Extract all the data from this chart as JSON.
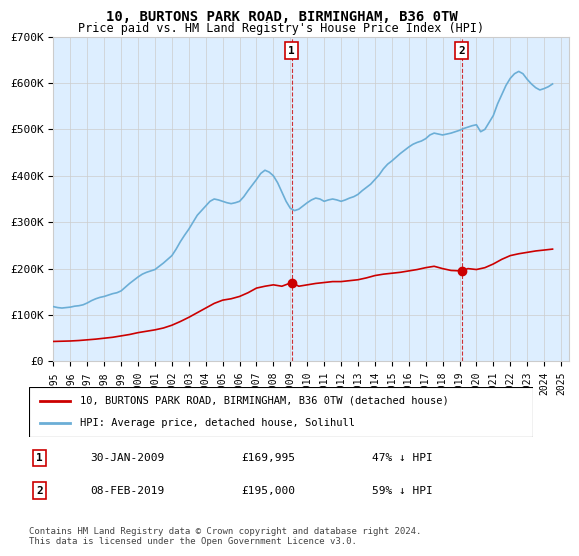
{
  "title": "10, BURTONS PARK ROAD, BIRMINGHAM, B36 0TW",
  "subtitle": "Price paid vs. HM Land Registry's House Price Index (HPI)",
  "ylabel_ticks": [
    "£0",
    "£100K",
    "£200K",
    "£300K",
    "£400K",
    "£500K",
    "£600K",
    "£700K"
  ],
  "ylim": [
    0,
    700000
  ],
  "xlim_start": 1995.0,
  "xlim_end": 2025.5,
  "hpi_color": "#6baed6",
  "price_color": "#cc0000",
  "grid_color": "#cccccc",
  "bg_color": "#ddeeff",
  "plot_bg": "#ddeeff",
  "transactions": [
    {
      "date": "30-JAN-2009",
      "price": 169995,
      "label": "1",
      "year": 2009.08,
      "hpi_pct": "47% ↓ HPI"
    },
    {
      "date": "08-FEB-2019",
      "price": 195000,
      "label": "2",
      "year": 2019.12,
      "hpi_pct": "59% ↓ HPI"
    }
  ],
  "legend_line1": "10, BURTONS PARK ROAD, BIRMINGHAM, B36 0TW (detached house)",
  "legend_line2": "HPI: Average price, detached house, Solihull",
  "footnote": "Contains HM Land Registry data © Crown copyright and database right 2024.\nThis data is licensed under the Open Government Licence v3.0.",
  "hpi_data": {
    "years": [
      1995.0,
      1995.25,
      1995.5,
      1995.75,
      1996.0,
      1996.25,
      1996.5,
      1996.75,
      1997.0,
      1997.25,
      1997.5,
      1997.75,
      1998.0,
      1998.25,
      1998.5,
      1998.75,
      1999.0,
      1999.25,
      1999.5,
      1999.75,
      2000.0,
      2000.25,
      2000.5,
      2000.75,
      2001.0,
      2001.25,
      2001.5,
      2001.75,
      2002.0,
      2002.25,
      2002.5,
      2002.75,
      2003.0,
      2003.25,
      2003.5,
      2003.75,
      2004.0,
      2004.25,
      2004.5,
      2004.75,
      2005.0,
      2005.25,
      2005.5,
      2005.75,
      2006.0,
      2006.25,
      2006.5,
      2006.75,
      2007.0,
      2007.25,
      2007.5,
      2007.75,
      2008.0,
      2008.25,
      2008.5,
      2008.75,
      2009.0,
      2009.25,
      2009.5,
      2009.75,
      2010.0,
      2010.25,
      2010.5,
      2010.75,
      2011.0,
      2011.25,
      2011.5,
      2011.75,
      2012.0,
      2012.25,
      2012.5,
      2012.75,
      2013.0,
      2013.25,
      2013.5,
      2013.75,
      2014.0,
      2014.25,
      2014.5,
      2014.75,
      2015.0,
      2015.25,
      2015.5,
      2015.75,
      2016.0,
      2016.25,
      2016.5,
      2016.75,
      2017.0,
      2017.25,
      2017.5,
      2017.75,
      2018.0,
      2018.25,
      2018.5,
      2018.75,
      2019.0,
      2019.25,
      2019.5,
      2019.75,
      2020.0,
      2020.25,
      2020.5,
      2020.75,
      2021.0,
      2021.25,
      2021.5,
      2021.75,
      2022.0,
      2022.25,
      2022.5,
      2022.75,
      2023.0,
      2023.25,
      2023.5,
      2023.75,
      2024.0,
      2024.25,
      2024.5
    ],
    "values": [
      118000,
      116000,
      115000,
      116000,
      117000,
      119000,
      120000,
      122000,
      126000,
      131000,
      135000,
      138000,
      140000,
      143000,
      146000,
      148000,
      152000,
      160000,
      168000,
      175000,
      182000,
      188000,
      192000,
      195000,
      198000,
      205000,
      212000,
      220000,
      228000,
      242000,
      258000,
      272000,
      285000,
      300000,
      315000,
      325000,
      335000,
      345000,
      350000,
      348000,
      345000,
      342000,
      340000,
      342000,
      345000,
      355000,
      368000,
      380000,
      392000,
      405000,
      412000,
      408000,
      400000,
      385000,
      365000,
      345000,
      330000,
      325000,
      328000,
      335000,
      342000,
      348000,
      352000,
      350000,
      345000,
      348000,
      350000,
      348000,
      345000,
      348000,
      352000,
      355000,
      360000,
      368000,
      375000,
      382000,
      392000,
      402000,
      415000,
      425000,
      432000,
      440000,
      448000,
      455000,
      462000,
      468000,
      472000,
      475000,
      480000,
      488000,
      492000,
      490000,
      488000,
      490000,
      492000,
      495000,
      498000,
      502000,
      505000,
      508000,
      510000,
      495000,
      500000,
      515000,
      530000,
      555000,
      575000,
      595000,
      610000,
      620000,
      625000,
      620000,
      608000,
      598000,
      590000,
      585000,
      588000,
      592000,
      598000
    ]
  },
  "price_data": {
    "years": [
      1995.0,
      1995.5,
      1996.0,
      1996.5,
      1997.0,
      1997.5,
      1998.0,
      1998.5,
      1999.0,
      1999.5,
      2000.0,
      2000.5,
      2001.0,
      2001.5,
      2002.0,
      2002.5,
      2003.0,
      2003.5,
      2004.0,
      2004.5,
      2005.0,
      2005.5,
      2006.0,
      2006.5,
      2007.0,
      2007.5,
      2008.0,
      2008.5,
      2009.08,
      2009.5,
      2010.0,
      2010.5,
      2011.0,
      2011.5,
      2012.0,
      2012.5,
      2013.0,
      2013.5,
      2014.0,
      2014.5,
      2015.0,
      2015.5,
      2016.0,
      2016.5,
      2017.0,
      2017.5,
      2018.0,
      2018.5,
      2019.12,
      2019.5,
      2020.0,
      2020.5,
      2021.0,
      2021.5,
      2022.0,
      2022.5,
      2023.0,
      2023.5,
      2024.0,
      2024.5
    ],
    "values": [
      43000,
      43500,
      44000,
      45000,
      46500,
      48000,
      50000,
      52000,
      55000,
      58000,
      62000,
      65000,
      68000,
      72000,
      78000,
      86000,
      95000,
      105000,
      115000,
      125000,
      132000,
      135000,
      140000,
      148000,
      158000,
      162000,
      165000,
      162000,
      169995,
      162000,
      165000,
      168000,
      170000,
      172000,
      172000,
      174000,
      176000,
      180000,
      185000,
      188000,
      190000,
      192000,
      195000,
      198000,
      202000,
      205000,
      200000,
      196000,
      195000,
      200000,
      198000,
      202000,
      210000,
      220000,
      228000,
      232000,
      235000,
      238000,
      240000,
      242000
    ]
  }
}
